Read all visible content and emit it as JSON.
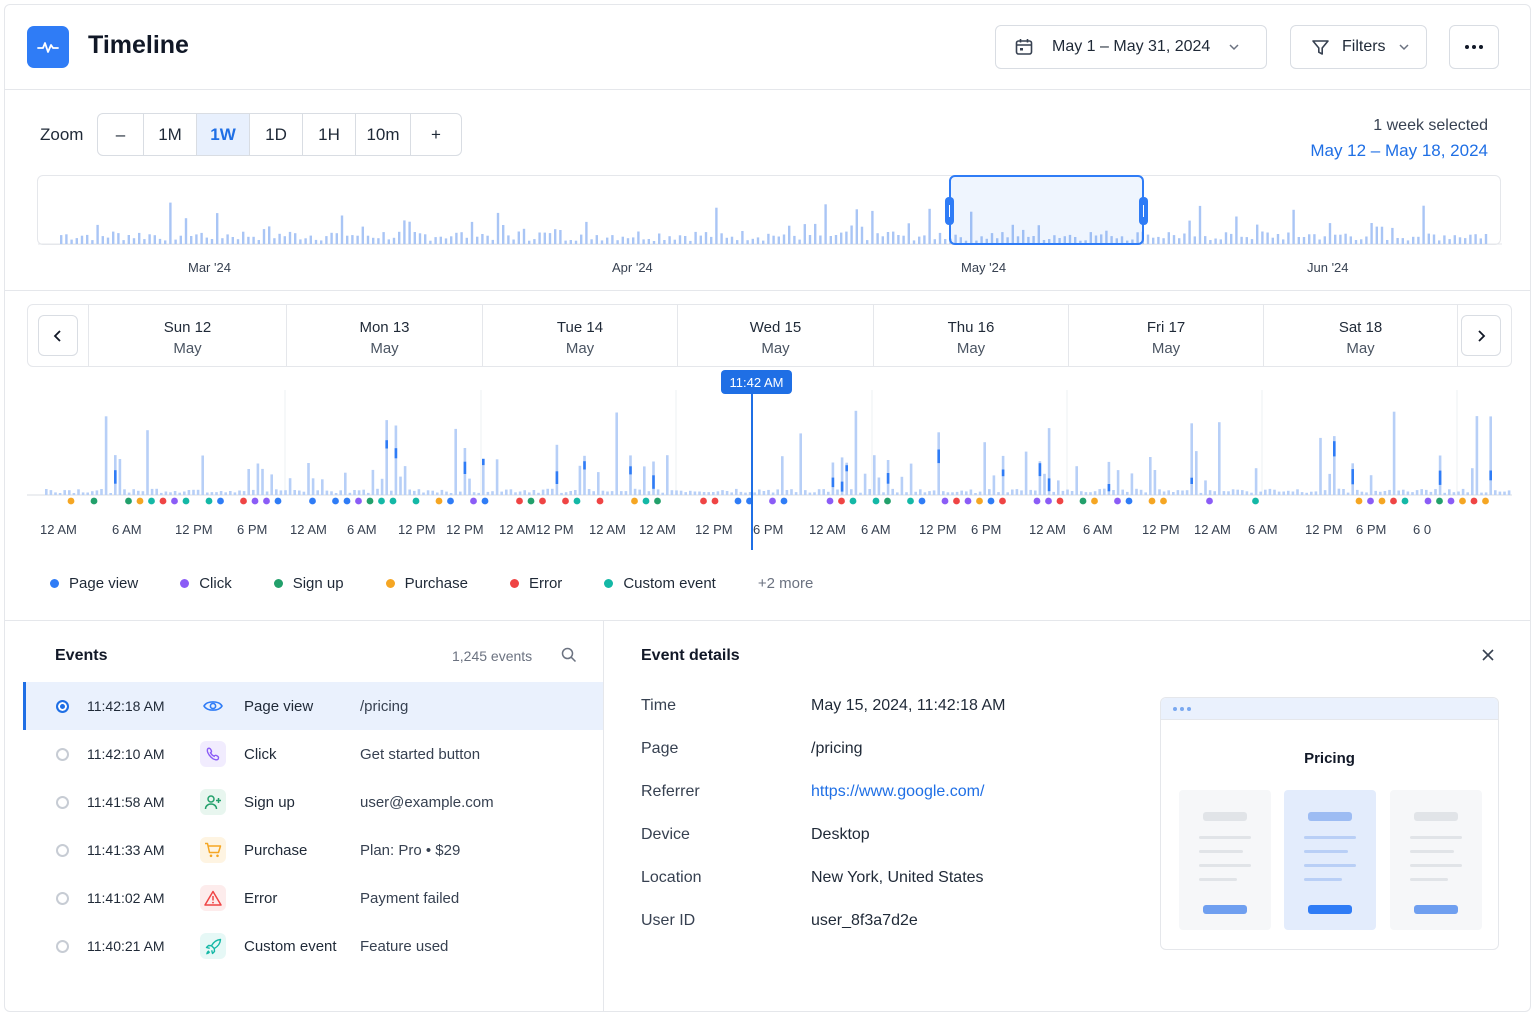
{
  "header": {
    "title": "Timeline",
    "date_range": "May 1 – May 31, 2024",
    "filters_label": "Filters",
    "logo_icon": "pulse-icon"
  },
  "zoom": {
    "label": "Zoom",
    "minus": "–",
    "plus": "+",
    "options": [
      "1M",
      "1W",
      "1D",
      "1H",
      "10m"
    ],
    "active": "1W",
    "selection_text": "1 week selected",
    "selection_range": "May 12 – May 18, 2024"
  },
  "overview": {
    "months": [
      "Mar '24",
      "Apr '24",
      "May '24",
      "Jun '24"
    ]
  },
  "days": [
    {
      "day": "Sun 12",
      "month": "May"
    },
    {
      "day": "Mon 13",
      "month": "May"
    },
    {
      "day": "Tue 14",
      "month": "May"
    },
    {
      "day": "Wed 15",
      "month": "May"
    },
    {
      "day": "Thu 16",
      "month": "May"
    },
    {
      "day": "Fri 17",
      "month": "May"
    },
    {
      "day": "Sat 18",
      "month": "May"
    }
  ],
  "cursor": {
    "time": "11:42 AM"
  },
  "ticks": [
    "12 AM",
    "6 AM",
    "12 PM",
    "6 PM",
    "12 AM",
    "6 AM",
    "12 PM",
    "12 PM",
    "12 AM",
    "12 PM",
    "12 AM",
    "12 AM",
    "12 PM",
    "6 PM",
    "12 AM",
    "6 AM",
    "12 PM",
    "6 PM",
    "12 AM",
    "6 AM",
    "12 PM",
    "12 AM",
    "6 AM",
    "12 PM",
    "6 PM",
    "6 0"
  ],
  "legend": [
    {
      "label": "Page view",
      "color": "#2f7cf6"
    },
    {
      "label": "Click",
      "color": "#8b5cf6"
    },
    {
      "label": "Sign up",
      "color": "#22a06b"
    },
    {
      "label": "Purchase",
      "color": "#f5a623"
    },
    {
      "label": "Error",
      "color": "#ef4444"
    },
    {
      "label": "Custom event",
      "color": "#14b8a6"
    }
  ],
  "legend_more": "+2 more",
  "events": {
    "title": "Events",
    "count": "1,245 events",
    "rows": [
      {
        "time": "11:42:18 AM",
        "type": "Page view",
        "detail": "/pricing",
        "icon": "eye-icon",
        "color": "#2f7cf6"
      },
      {
        "time": "11:42:10 AM",
        "type": "Click",
        "detail": "Get started button",
        "icon": "pointer-icon",
        "color": "#8b5cf6"
      },
      {
        "time": "11:41:58 AM",
        "type": "Sign up",
        "detail": "user@example.com",
        "icon": "user-plus-icon",
        "color": "#22a06b"
      },
      {
        "time": "11:41:33 AM",
        "type": "Purchase",
        "detail": "Plan: Pro  •  $29",
        "icon": "cart-icon",
        "color": "#f5a623"
      },
      {
        "time": "11:41:02 AM",
        "type": "Error",
        "detail": "Payment failed",
        "icon": "warning-icon",
        "color": "#ef4444"
      },
      {
        "time": "11:40:21 AM",
        "type": "Custom event",
        "detail": "Feature used",
        "icon": "rocket-icon",
        "color": "#14b8a6"
      }
    ]
  },
  "details": {
    "title": "Event details",
    "fields": [
      {
        "label": "Time",
        "value": "May 15, 2024, 11:42:18 AM"
      },
      {
        "label": "Page",
        "value": "/pricing"
      },
      {
        "label": "Referrer",
        "value": "https://www.google.com/"
      },
      {
        "label": "Device",
        "value": "Desktop"
      },
      {
        "label": "Location",
        "value": "New York, United States"
      },
      {
        "label": "User ID",
        "value": "user_8f3a7d2e"
      }
    ],
    "preview_title": "Pricing"
  }
}
